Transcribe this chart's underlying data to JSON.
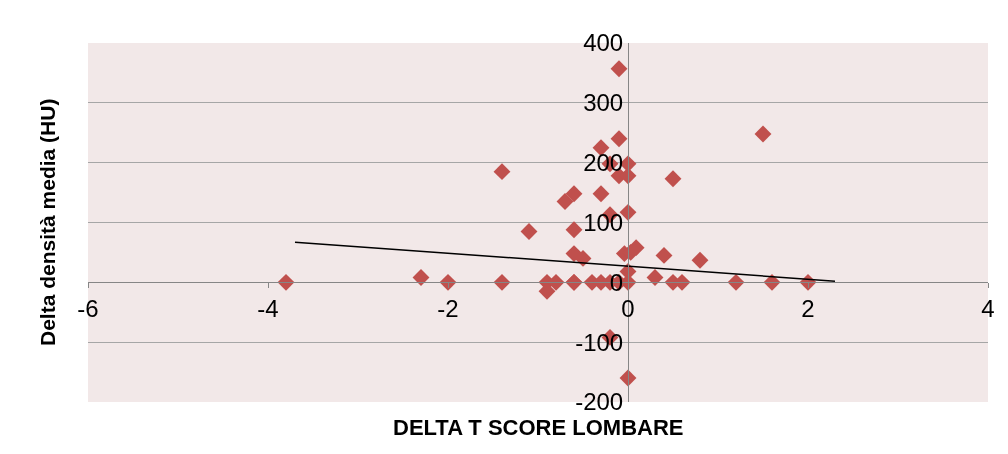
{
  "chart_data": {
    "type": "scatter",
    "xlabel": "DELTA T SCORE LOMBARE",
    "ylabel": "Delta densità media (HU)",
    "xlim": [
      -6,
      4
    ],
    "xticks": [
      -6,
      -4,
      -2,
      0,
      2,
      4
    ],
    "ylim": [
      -200,
      400
    ],
    "yticks": [
      -200,
      -100,
      0,
      100,
      200,
      300,
      400
    ],
    "grid": "y",
    "series": [
      {
        "marker": "diamond",
        "color": "#c0504d",
        "x": [
          -3.8,
          -2.3,
          -2.0,
          -1.4,
          -1.4,
          -1.1,
          -0.9,
          -0.9,
          -0.8,
          -0.6,
          -0.6,
          -0.7,
          -0.6,
          -0.6,
          -0.5,
          -0.6,
          -0.4,
          -0.3,
          -0.3,
          -0.3,
          -0.2,
          -0.2,
          -0.2,
          -0.2,
          -0.1,
          -0.1,
          -0.1,
          -0.1,
          0.0,
          0.0,
          0.0,
          0.0,
          0.0,
          -0.04,
          0.03,
          0.09,
          0.3,
          0.4,
          0.5,
          0.5,
          0.6,
          0.8,
          1.2,
          1.5,
          1.6,
          2.0,
          0.0
        ],
        "values": [
          0,
          8,
          0,
          0,
          185,
          85,
          0,
          -15,
          0,
          148,
          0,
          135,
          88,
          48,
          40,
          0,
          0,
          225,
          148,
          0,
          198,
          113,
          0,
          -92,
          357,
          240,
          178,
          0,
          198,
          178,
          117,
          18,
          0,
          48,
          50,
          58,
          8,
          45,
          173,
          0,
          0,
          37,
          0,
          248,
          0,
          0,
          -160
        ]
      },
      {
        "type": "line",
        "color": "#000000",
        "x": [
          -3.7,
          2.3
        ],
        "values": [
          67,
          2
        ]
      }
    ]
  }
}
